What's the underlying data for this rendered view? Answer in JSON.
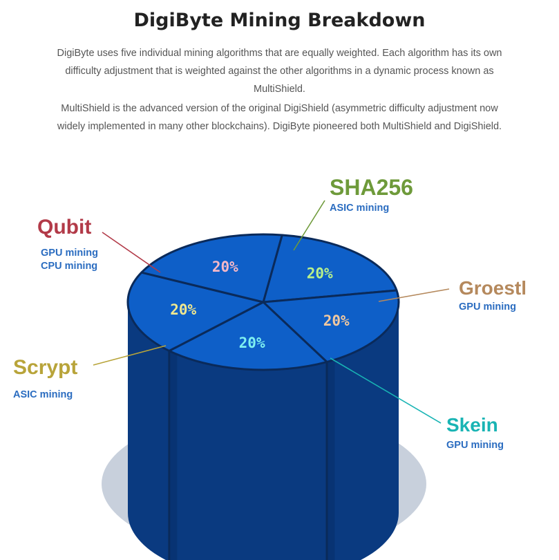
{
  "page": {
    "title": "DigiByte Mining Breakdown",
    "paragraphs": [
      "DigiByte uses five individual mining algorithms that are equally weighted. Each algorithm has its own difficulty adjustment that is weighted against the other algorithms in a dynamic process known as MultiShield.",
      "MultiShield is the advanced version of the original DigiShield (asymmetric difficulty adjustment now widely implemented in many other blockchains). DigiByte pioneered both MultiShield and DigiShield."
    ]
  },
  "chart_data": {
    "type": "pie",
    "style": "3d-cylinder",
    "categories": [
      "SHA256",
      "Groestl",
      "Skein",
      "Scrypt",
      "Qubit"
    ],
    "values": [
      20,
      20,
      20,
      20,
      20
    ],
    "value_labels": [
      "20%",
      "20%",
      "20%",
      "20%",
      "20%"
    ],
    "annotations": [
      {
        "name": "SHA256",
        "notes": [
          "ASIC mining"
        ],
        "color": "#6e9a3a"
      },
      {
        "name": "Groestl",
        "notes": [
          "GPU mining"
        ],
        "color": "#b5895d"
      },
      {
        "name": "Skein",
        "notes": [
          "GPU mining"
        ],
        "color": "#19b4b4"
      },
      {
        "name": "Scrypt",
        "notes": [
          "ASIC mining"
        ],
        "color": "#b8a43a"
      },
      {
        "name": "Qubit",
        "notes": [
          "GPU mining",
          "CPU mining"
        ],
        "color": "#b23a48"
      }
    ],
    "value_label_colors": [
      "#b8f08a",
      "#f0c8a0",
      "#7ff0f0",
      "#f0e890",
      "#f4b8c8"
    ],
    "colors": {
      "top": "#0e5fc8",
      "side": "#0a3a80",
      "side_shadow": "#082e68",
      "divider": "#0a2a5a",
      "shadow": "#c8d0dc",
      "note": "#2a6cc0"
    }
  }
}
